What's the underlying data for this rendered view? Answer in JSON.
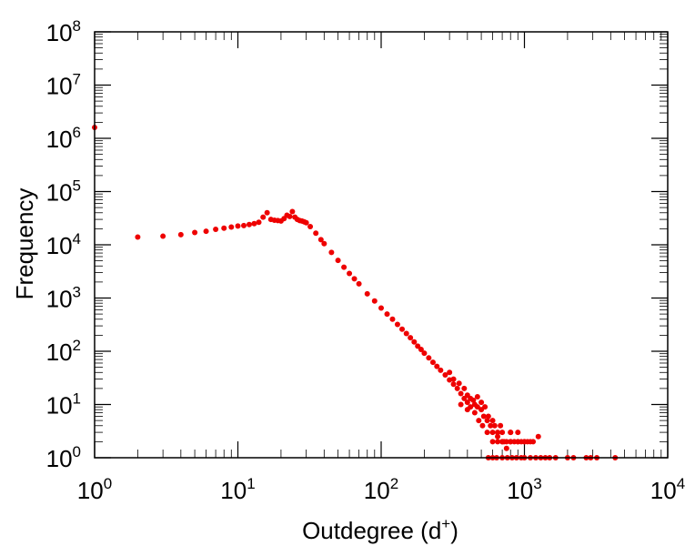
{
  "chart_data": {
    "type": "scatter",
    "title": "",
    "xlabel": "Outdegree (d",
    "xlabel_sup": "+",
    "xlabel_close": ")",
    "ylabel": "Frequency",
    "xscale": "log",
    "yscale": "log",
    "xlim": [
      1,
      10000
    ],
    "ylim": [
      1,
      100000000
    ],
    "x_ticks": [
      {
        "base": "10",
        "exp": "0"
      },
      {
        "base": "10",
        "exp": "1"
      },
      {
        "base": "10",
        "exp": "2"
      },
      {
        "base": "10",
        "exp": "3"
      },
      {
        "base": "10",
        "exp": "4"
      }
    ],
    "y_ticks": [
      {
        "base": "10",
        "exp": "0"
      },
      {
        "base": "10",
        "exp": "1"
      },
      {
        "base": "10",
        "exp": "2"
      },
      {
        "base": "10",
        "exp": "3"
      },
      {
        "base": "10",
        "exp": "4"
      },
      {
        "base": "10",
        "exp": "5"
      },
      {
        "base": "10",
        "exp": "6"
      },
      {
        "base": "10",
        "exp": "7"
      },
      {
        "base": "10",
        "exp": "8"
      }
    ],
    "marker_color": "#ee0000",
    "series": [
      {
        "points": [
          [
            1,
            1600000
          ],
          [
            2,
            14000
          ],
          [
            3,
            14500
          ],
          [
            4,
            15500
          ],
          [
            5,
            17000
          ],
          [
            6,
            18000
          ],
          [
            7,
            19500
          ],
          [
            8,
            20500
          ],
          [
            9,
            21500
          ],
          [
            10,
            22500
          ],
          [
            11,
            23000
          ],
          [
            12,
            24000
          ],
          [
            13,
            25000
          ],
          [
            14,
            26500
          ],
          [
            15,
            33000
          ],
          [
            16,
            40000
          ],
          [
            17,
            30000
          ],
          [
            18,
            29000
          ],
          [
            19,
            28500
          ],
          [
            20,
            28000
          ],
          [
            21,
            31000
          ],
          [
            22,
            36000
          ],
          [
            23,
            34000
          ],
          [
            24,
            42000
          ],
          [
            25,
            33000
          ],
          [
            26,
            30000
          ],
          [
            27,
            28500
          ],
          [
            28,
            28000
          ],
          [
            29,
            27000
          ],
          [
            30,
            26000
          ],
          [
            32,
            22000
          ],
          [
            35,
            16500
          ],
          [
            38,
            12500
          ],
          [
            40,
            10500
          ],
          [
            45,
            7200
          ],
          [
            50,
            5100
          ],
          [
            55,
            3800
          ],
          [
            60,
            2900
          ],
          [
            65,
            2300
          ],
          [
            70,
            1850
          ],
          [
            80,
            1200
          ],
          [
            90,
            880
          ],
          [
            100,
            650
          ],
          [
            110,
            500
          ],
          [
            120,
            400
          ],
          [
            130,
            320
          ],
          [
            140,
            260
          ],
          [
            150,
            215
          ],
          [
            160,
            180
          ],
          [
            170,
            150
          ],
          [
            180,
            125
          ],
          [
            190,
            108
          ],
          [
            200,
            92
          ],
          [
            215,
            75
          ],
          [
            230,
            62
          ],
          [
            245,
            52
          ],
          [
            260,
            44
          ],
          [
            280,
            36
          ],
          [
            300,
            29
          ],
          [
            320,
            24
          ],
          [
            340,
            20
          ],
          [
            360,
            16
          ],
          [
            380,
            13
          ],
          [
            400,
            11
          ],
          [
            420,
            9
          ],
          [
            450,
            7
          ],
          [
            480,
            5
          ],
          [
            510,
            4
          ],
          [
            550,
            3
          ],
          [
            600,
            2
          ],
          [
            300,
            40
          ],
          [
            320,
            30
          ],
          [
            350,
            25
          ],
          [
            380,
            20
          ],
          [
            400,
            15
          ],
          [
            420,
            13
          ],
          [
            450,
            10
          ],
          [
            470,
            9
          ],
          [
            500,
            8
          ],
          [
            520,
            6
          ],
          [
            550,
            5
          ],
          [
            580,
            4
          ],
          [
            600,
            3
          ],
          [
            650,
            2
          ],
          [
            700,
            2
          ],
          [
            750,
            1.5
          ],
          [
            800,
            2
          ],
          [
            360,
            10
          ],
          [
            400,
            8
          ],
          [
            440,
            12
          ],
          [
            470,
            14
          ],
          [
            500,
            11
          ],
          [
            530,
            9
          ],
          [
            560,
            6
          ],
          [
            600,
            5
          ],
          [
            620,
            4
          ],
          [
            650,
            3
          ],
          [
            680,
            4
          ],
          [
            700,
            3
          ],
          [
            720,
            2
          ],
          [
            800,
            3
          ],
          [
            900,
            2
          ],
          [
            1000,
            2
          ],
          [
            1100,
            2
          ],
          [
            650,
            2.5
          ],
          [
            700,
            2
          ],
          [
            750,
            2
          ],
          [
            800,
            2
          ],
          [
            850,
            2
          ],
          [
            900,
            2
          ],
          [
            950,
            2
          ],
          [
            1000,
            2
          ],
          [
            1050,
            2
          ],
          [
            1150,
            2
          ],
          [
            1250,
            2.5
          ],
          [
            560,
            1
          ],
          [
            600,
            1
          ],
          [
            640,
            1
          ],
          [
            700,
            1
          ],
          [
            760,
            1
          ],
          [
            820,
            1
          ],
          [
            880,
            1
          ],
          [
            950,
            1
          ],
          [
            1000,
            1
          ],
          [
            1100,
            1
          ],
          [
            1200,
            1
          ],
          [
            1300,
            1
          ],
          [
            1400,
            1
          ],
          [
            1500,
            1
          ],
          [
            1650,
            1
          ],
          [
            2000,
            1
          ],
          [
            2200,
            1
          ],
          [
            2700,
            1
          ],
          [
            2900,
            1
          ],
          [
            3200,
            1
          ],
          [
            4300,
            1
          ],
          [
            800,
            3
          ],
          [
            900,
            3
          ]
        ]
      }
    ]
  }
}
